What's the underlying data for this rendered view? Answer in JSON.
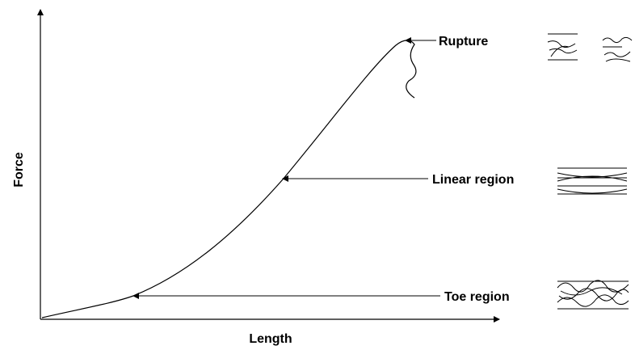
{
  "axes": {
    "y_label": "Force",
    "x_label": "Length"
  },
  "annotations": [
    {
      "label": "Rupture"
    },
    {
      "label": "Linear region"
    },
    {
      "label": "Toe region"
    }
  ]
}
